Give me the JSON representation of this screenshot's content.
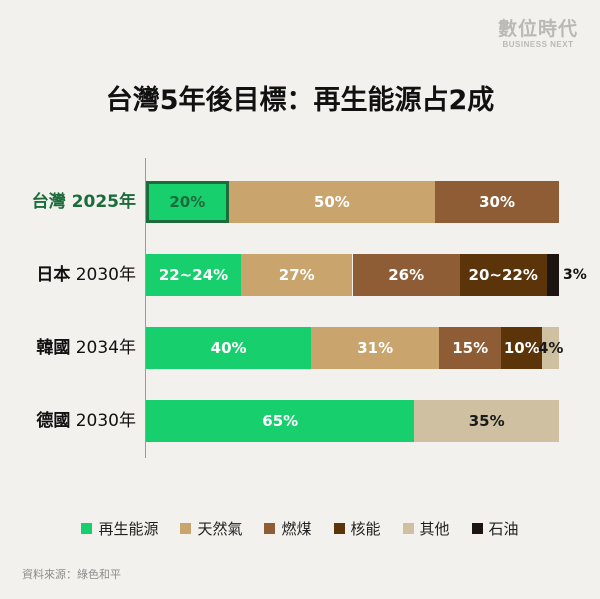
{
  "logo": {
    "main": "數位時代",
    "sub": "BUSINESS NEXT"
  },
  "chart_data": {
    "type": "bar",
    "orientation": "horizontal",
    "stacked": true,
    "title": "台灣5年後目標：再生能源占2成",
    "xlim": [
      0,
      100
    ],
    "categories": [
      {
        "country": "台灣",
        "year": "2025年",
        "highlight": true
      },
      {
        "country": "日本",
        "year": "2030年",
        "highlight": false
      },
      {
        "country": "韓國",
        "year": "2034年",
        "highlight": false
      },
      {
        "country": "德國",
        "year": "2030年",
        "highlight": false
      }
    ],
    "series": [
      {
        "name": "再生能源",
        "color": "#18cf6e",
        "values": [
          20,
          23,
          40,
          65
        ],
        "labels": [
          "20%",
          "22~24%",
          "40%",
          "65%"
        ]
      },
      {
        "name": "天然氣",
        "color": "#c9a46c",
        "values": [
          50,
          27,
          31,
          0
        ],
        "labels": [
          "50%",
          "27%",
          "31%",
          ""
        ]
      },
      {
        "name": "燃煤",
        "color": "#8e5d35",
        "values": [
          30,
          26,
          15,
          0
        ],
        "labels": [
          "30%",
          "26%",
          "15%",
          ""
        ]
      },
      {
        "name": "核能",
        "color": "#5b3409",
        "values": [
          0,
          21,
          10,
          0
        ],
        "labels": [
          "",
          "20~22%",
          "10%",
          ""
        ]
      },
      {
        "name": "其他",
        "color": "#cfc0a2",
        "values": [
          0,
          0,
          4,
          35
        ],
        "labels": [
          "",
          "",
          "4%",
          "35%"
        ]
      },
      {
        "name": "石油",
        "color": "#1c1410",
        "values": [
          0,
          3,
          0,
          0
        ],
        "labels": [
          "",
          "3%",
          "",
          ""
        ]
      }
    ],
    "grid": false,
    "legend_position": "bottom"
  },
  "source": "資料來源：綠色和平"
}
